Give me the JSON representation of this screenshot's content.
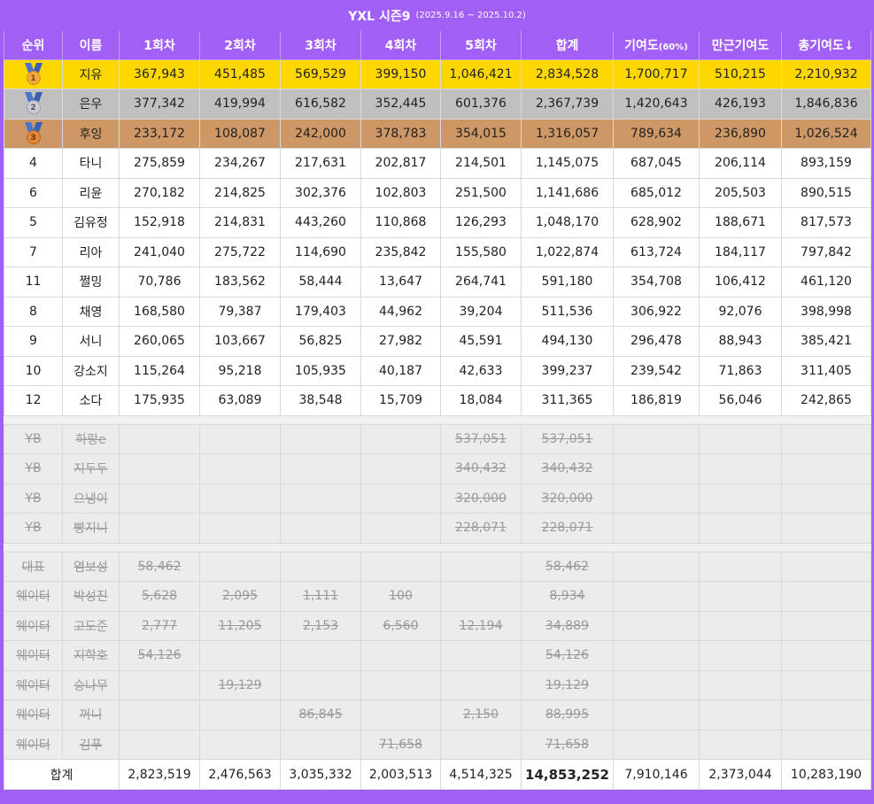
{
  "title": "YXL 시즌9",
  "period": "(2025.9.16 ~ 2025.10.2)",
  "headers": [
    "순위",
    "이름",
    "1회차",
    "2회차",
    "3회차",
    "4회차",
    "5회차",
    "합계",
    "기여도",
    "만근기여도",
    "총기여도↓"
  ],
  "header_pct": "(60%)",
  "medal_numbers": [
    "1",
    "2",
    "3"
  ],
  "rows": [
    {
      "rank": "",
      "name": "지유",
      "r1": "367,943",
      "r2": "451,485",
      "r3": "569,529",
      "r4": "399,150",
      "r5": "1,046,421",
      "sum": "2,834,528",
      "contrib": "1,700,717",
      "attend": "510,215",
      "total": "2,210,932"
    },
    {
      "rank": "",
      "name": "은우",
      "r1": "377,342",
      "r2": "419,994",
      "r3": "616,582",
      "r4": "352,445",
      "r5": "601,376",
      "sum": "2,367,739",
      "contrib": "1,420,643",
      "attend": "426,193",
      "total": "1,846,836"
    },
    {
      "rank": "",
      "name": "후잉",
      "r1": "233,172",
      "r2": "108,087",
      "r3": "242,000",
      "r4": "378,783",
      "r5": "354,015",
      "sum": "1,316,057",
      "contrib": "789,634",
      "attend": "236,890",
      "total": "1,026,524"
    },
    {
      "rank": "4",
      "name": "타니",
      "r1": "275,859",
      "r2": "234,267",
      "r3": "217,631",
      "r4": "202,817",
      "r5": "214,501",
      "sum": "1,145,075",
      "contrib": "687,045",
      "attend": "206,114",
      "total": "893,159"
    },
    {
      "rank": "6",
      "name": "리윤",
      "r1": "270,182",
      "r2": "214,825",
      "r3": "302,376",
      "r4": "102,803",
      "r5": "251,500",
      "sum": "1,141,686",
      "contrib": "685,012",
      "attend": "205,503",
      "total": "890,515"
    },
    {
      "rank": "5",
      "name": "김유정",
      "r1": "152,918",
      "r2": "214,831",
      "r3": "443,260",
      "r4": "110,868",
      "r5": "126,293",
      "sum": "1,048,170",
      "contrib": "628,902",
      "attend": "188,671",
      "total": "817,573"
    },
    {
      "rank": "7",
      "name": "리아",
      "r1": "241,040",
      "r2": "275,722",
      "r3": "114,690",
      "r4": "235,842",
      "r5": "155,580",
      "sum": "1,022,874",
      "contrib": "613,724",
      "attend": "184,117",
      "total": "797,842"
    },
    {
      "rank": "11",
      "name": "쩔밍",
      "r1": "70,786",
      "r2": "183,562",
      "r3": "58,444",
      "r4": "13,647",
      "r5": "264,741",
      "sum": "591,180",
      "contrib": "354,708",
      "attend": "106,412",
      "total": "461,120"
    },
    {
      "rank": "8",
      "name": "채영",
      "r1": "168,580",
      "r2": "79,387",
      "r3": "179,403",
      "r4": "44,962",
      "r5": "39,204",
      "sum": "511,536",
      "contrib": "306,922",
      "attend": "92,076",
      "total": "398,998"
    },
    {
      "rank": "9",
      "name": "서니",
      "r1": "260,065",
      "r2": "103,667",
      "r3": "56,825",
      "r4": "27,982",
      "r5": "45,591",
      "sum": "494,130",
      "contrib": "296,478",
      "attend": "88,943",
      "total": "385,421"
    },
    {
      "rank": "10",
      "name": "강소지",
      "r1": "115,264",
      "r2": "95,218",
      "r3": "105,935",
      "r4": "40,187",
      "r5": "42,633",
      "sum": "399,237",
      "contrib": "239,542",
      "attend": "71,863",
      "total": "311,405"
    },
    {
      "rank": "12",
      "name": "소다",
      "r1": "175,935",
      "r2": "63,089",
      "r3": "38,548",
      "r4": "15,709",
      "r5": "18,084",
      "sum": "311,365",
      "contrib": "186,819",
      "attend": "56,046",
      "total": "242,865"
    }
  ],
  "yb_rows": [
    {
      "rank": "YB",
      "name": "하랑e",
      "r1": "",
      "r2": "",
      "r3": "",
      "r4": "",
      "r5": "537,051",
      "sum": "537,051"
    },
    {
      "rank": "YB",
      "name": "지두두",
      "r1": "",
      "r2": "",
      "r3": "",
      "r4": "",
      "r5": "340,432",
      "sum": "340,432"
    },
    {
      "rank": "YB",
      "name": "으냉이",
      "r1": "",
      "r2": "",
      "r3": "",
      "r4": "",
      "r5": "320,000",
      "sum": "320,000"
    },
    {
      "rank": "YB",
      "name": "빵지니",
      "r1": "",
      "r2": "",
      "r3": "",
      "r4": "",
      "r5": "228,071",
      "sum": "228,071"
    }
  ],
  "staff_rows": [
    {
      "rank": "대표",
      "name": "염보성",
      "r1": "58,462",
      "r2": "",
      "r3": "",
      "r4": "",
      "r5": "",
      "sum": "58,462"
    },
    {
      "rank": "웨이터",
      "name": "박성진",
      "r1": "5,628",
      "r2": "2,095",
      "r3": "1,111",
      "r4": "100",
      "r5": "",
      "sum": "8,934"
    },
    {
      "rank": "웨이터",
      "name": "고도준",
      "r1": "2,777",
      "r2": "11,205",
      "r3": "2,153",
      "r4": "6,560",
      "r5": "12,194",
      "sum": "34,889"
    },
    {
      "rank": "웨이터",
      "name": "지학호",
      "r1": "54,126",
      "r2": "",
      "r3": "",
      "r4": "",
      "r5": "",
      "sum": "54,126"
    },
    {
      "rank": "웨이터",
      "name": "승나무",
      "r1": "",
      "r2": "19,129",
      "r3": "",
      "r4": "",
      "r5": "",
      "sum": "19,129"
    },
    {
      "rank": "웨이터",
      "name": "꺼니",
      "r1": "",
      "r2": "",
      "r3": "86,845",
      "r4": "",
      "r5": "2,150",
      "sum": "88,995"
    },
    {
      "rank": "웨이터",
      "name": "김푸",
      "r1": "",
      "r2": "",
      "r3": "",
      "r4": "71,658",
      "r5": "",
      "sum": "71,658"
    }
  ],
  "totals": {
    "label": "합계",
    "r1": "2,823,519",
    "r2": "2,476,563",
    "r3": "3,035,332",
    "r4": "2,003,513",
    "r5": "4,514,325",
    "sum": "14,853,252",
    "contrib": "7,910,146",
    "attend": "2,373,044",
    "total": "10,283,190"
  }
}
